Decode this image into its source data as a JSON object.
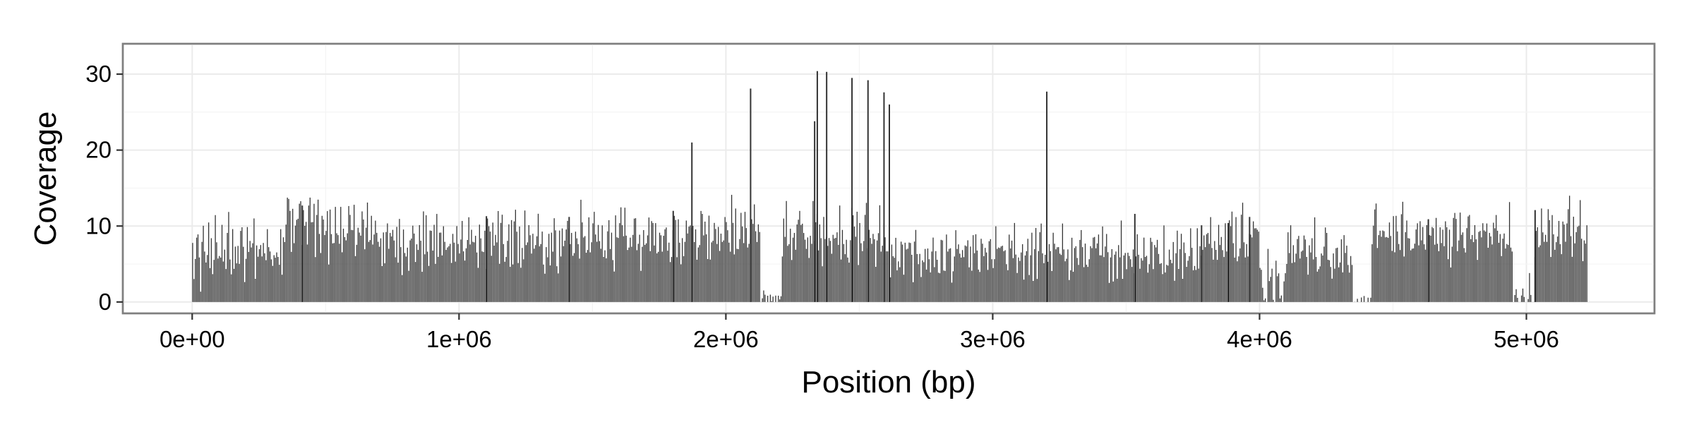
{
  "chart_data": {
    "type": "bar",
    "title": "",
    "xlabel": "Position (bp)",
    "ylabel": "Coverage",
    "xlim": [
      -260000,
      5480000
    ],
    "ylim": [
      -1.5,
      34
    ],
    "x_ticks": [
      0,
      1000000,
      2000000,
      3000000,
      4000000,
      5000000
    ],
    "x_tick_labels": [
      "0e+00",
      "1e+06",
      "2e+06",
      "3e+06",
      "4e+06",
      "5e+06"
    ],
    "y_ticks": [
      0,
      10,
      20,
      30
    ],
    "y_tick_labels": [
      "0",
      "10",
      "20",
      "30"
    ],
    "grid": true,
    "legend": "none",
    "series": [
      {
        "name": "Coverage",
        "color": "#333333",
        "bin_start": 0,
        "bin_width": 5000,
        "x_end": 5230000,
        "baseline": 5,
        "noise": 2.5,
        "dense_bars": [
          {
            "range": [
              0,
              60000
            ],
            "levels": [
              7,
              4,
              5,
              6,
              8,
              5,
              3,
              6,
              9,
              5,
              4,
              7
            ]
          },
          {
            "range": [
              60000,
              200000
            ],
            "levels": [
              9,
              6,
              8,
              5,
              7,
              10,
              6,
              4,
              8,
              6
            ]
          },
          {
            "range": [
              200000,
              350000
            ],
            "levels": [
              6,
              8,
              5,
              9,
              7,
              6,
              10,
              5,
              7,
              8
            ]
          },
          {
            "range": [
              350000,
              460000
            ],
            "levels": [
              10,
              12,
              13,
              11,
              9,
              12,
              8,
              10
            ]
          },
          {
            "range": [
              460000,
              700000
            ],
            "levels": [
              7,
              10,
              11,
              9,
              8,
              11,
              10,
              7,
              9,
              11
            ]
          },
          {
            "range": [
              700000,
              1000000
            ],
            "levels": [
              8,
              9,
              6,
              10,
              7,
              9,
              8,
              6,
              9,
              7
            ]
          },
          {
            "range": [
              1000000,
              1400000
            ],
            "levels": [
              6,
              9,
              11,
              7,
              5,
              8,
              6,
              9,
              7,
              10
            ]
          },
          {
            "range": [
              1400000,
              1800000
            ],
            "levels": [
              8,
              11,
              9,
              7,
              10,
              8,
              6,
              9,
              7,
              8
            ]
          },
          {
            "range": [
              1800000,
              2130000
            ],
            "levels": [
              9,
              11,
              10,
              8,
              12,
              9,
              7,
              10,
              8,
              9
            ]
          },
          {
            "range": [
              2130000,
              2210000
            ],
            "levels": [
              0,
              1,
              2,
              1,
              0,
              1
            ]
          },
          {
            "range": [
              2210000,
              2600000
            ],
            "levels": [
              7,
              9,
              10,
              11,
              8,
              9,
              10,
              7,
              9,
              8
            ]
          },
          {
            "range": [
              2600000,
              3000000
            ],
            "levels": [
              5,
              6,
              7,
              5,
              6,
              8,
              5,
              7,
              6,
              5
            ]
          },
          {
            "range": [
              3000000,
              3500000
            ],
            "levels": [
              5,
              6,
              8,
              5,
              6,
              7,
              9,
              5,
              6,
              7
            ]
          },
          {
            "range": [
              3500000,
              3800000
            ],
            "levels": [
              6,
              7,
              5,
              8,
              6,
              7,
              5,
              6,
              8,
              6
            ]
          },
          {
            "range": [
              3800000,
              4000000
            ],
            "levels": [
              7,
              9,
              10,
              11,
              9,
              8,
              10,
              7
            ]
          },
          {
            "range": [
              4000000,
              4100000
            ],
            "levels": [
              5,
              4,
              3,
              2,
              1,
              0
            ]
          },
          {
            "range": [
              4100000,
              4350000
            ],
            "levels": [
              6,
              7,
              5,
              8,
              6,
              9,
              7,
              5
            ]
          },
          {
            "range": [
              4350000,
              4420000
            ],
            "levels": [
              0,
              1,
              0,
              1,
              0
            ]
          },
          {
            "range": [
              4420000,
              4950000
            ],
            "levels": [
              7,
              9,
              10,
              11,
              8,
              9,
              10,
              8,
              9,
              7
            ]
          },
          {
            "range": [
              4950000,
              5030000
            ],
            "levels": [
              0,
              1,
              2,
              1,
              0
            ]
          },
          {
            "range": [
              5030000,
              5230000
            ],
            "levels": [
              8,
              10,
              12,
              9,
              7,
              10,
              8,
              9
            ]
          }
        ],
        "peaks": [
          {
            "x": 410000,
            "y": 12.7
          },
          {
            "x": 1100000,
            "y": 11.3
          },
          {
            "x": 1410000,
            "y": 11.2
          },
          {
            "x": 1800000,
            "y": 12.0
          },
          {
            "x": 1870000,
            "y": 21.0
          },
          {
            "x": 2090000,
            "y": 28.1
          },
          {
            "x": 2330000,
            "y": 23.8
          },
          {
            "x": 2340000,
            "y": 30.4
          },
          {
            "x": 2375000,
            "y": 30.3
          },
          {
            "x": 2470000,
            "y": 29.5
          },
          {
            "x": 2530000,
            "y": 29.2
          },
          {
            "x": 2590000,
            "y": 27.6
          },
          {
            "x": 2610000,
            "y": 26.0
          },
          {
            "x": 3200000,
            "y": 27.7
          },
          {
            "x": 3530000,
            "y": 11.6
          },
          {
            "x": 3780000,
            "y": 10.1
          },
          {
            "x": 3880000,
            "y": 10.4
          },
          {
            "x": 3960000,
            "y": 11.2
          },
          {
            "x": 4630000,
            "y": 10.9
          },
          {
            "x": 5030000,
            "y": 12.1
          }
        ]
      }
    ]
  }
}
